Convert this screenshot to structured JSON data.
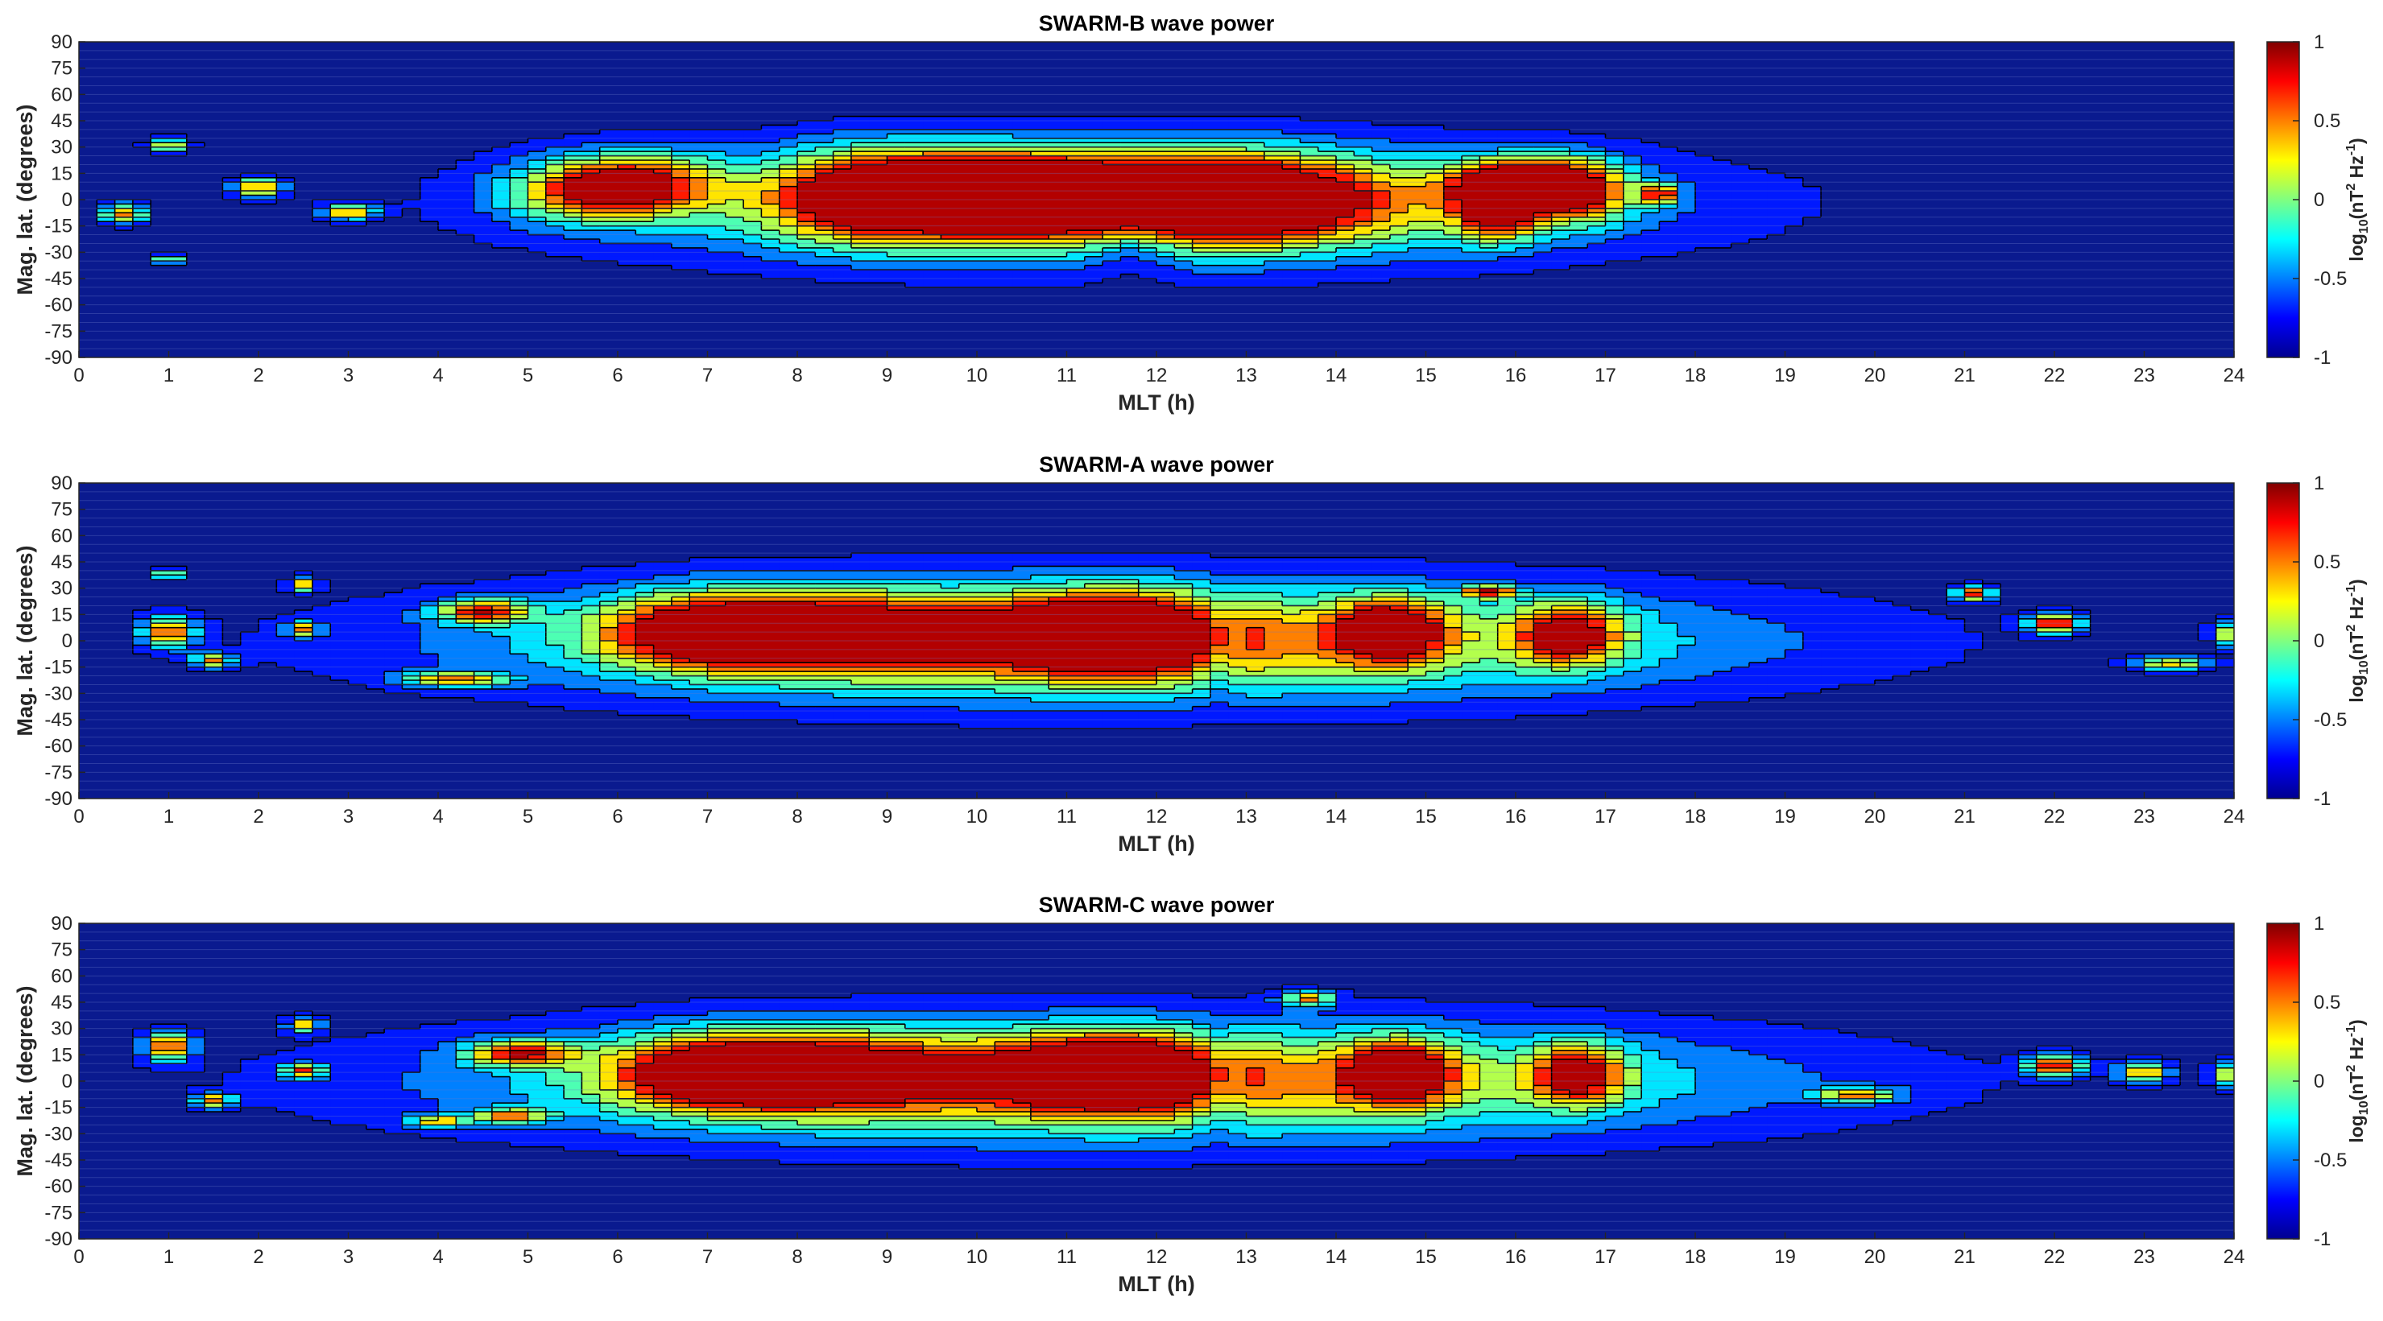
{
  "chart_data": [
    {
      "type": "heatmap",
      "title": "SWARM-B wave power",
      "xlabel": "MLT (h)",
      "ylabel": "Mag. lat. (degrees)",
      "colorbar_label": "log10(nT2 Hz-1)",
      "colorbar_label_parts": {
        "base": "log",
        "sub": "10",
        "open": "(nT",
        "sup1": "2",
        "mid": " Hz",
        "sup2": "-1",
        "close": ")"
      },
      "colorbar_range": [
        -1,
        1
      ],
      "colorbar_ticks": [
        "-1",
        "-0.5",
        "0",
        "0.5",
        "1"
      ],
      "colormap": "jet",
      "background_color": "#0a1a8f",
      "xlim": [
        0,
        24
      ],
      "ylim": [
        -90,
        90
      ],
      "x_ticks": [
        "0",
        "1",
        "2",
        "3",
        "4",
        "5",
        "6",
        "7",
        "8",
        "9",
        "10",
        "11",
        "12",
        "13",
        "14",
        "15",
        "16",
        "17",
        "18",
        "19",
        "20",
        "21",
        "22",
        "23",
        "24"
      ],
      "y_ticks": [
        "-90",
        "-75",
        "-60",
        "-45",
        "-30",
        "-15",
        "0",
        "15",
        "30",
        "45",
        "60",
        "75",
        "90"
      ],
      "blobs": [
        {
          "x": 11.6,
          "y": -2,
          "sx": 3.6,
          "sy": 22,
          "a": 0.65
        },
        {
          "x": 8.9,
          "y": 3,
          "sx": 0.75,
          "sy": 17,
          "a": 0.62
        },
        {
          "x": 10.4,
          "y": 4,
          "sx": 0.85,
          "sy": 15,
          "a": 0.82
        },
        {
          "x": 10.9,
          "y": 6,
          "sx": 0.35,
          "sy": 7,
          "a": 0.35
        },
        {
          "x": 12.8,
          "y": 1,
          "sx": 1.0,
          "sy": 16,
          "a": 0.9
        },
        {
          "x": 12.8,
          "y": -1,
          "sx": 0.35,
          "sy": 5,
          "a": 0.3
        },
        {
          "x": 9.3,
          "y": 1,
          "sx": 0.3,
          "sy": 10,
          "a": -0.3
        },
        {
          "x": 11.75,
          "y": -25,
          "sx": 0.35,
          "sy": 12,
          "a": -0.35
        },
        {
          "x": 6.3,
          "y": 10,
          "sx": 0.6,
          "sy": 12,
          "a": 0.2
        },
        {
          "x": 5.6,
          "y": 5,
          "sx": 0.6,
          "sy": 12,
          "a": 0.2
        },
        {
          "x": 16.0,
          "y": 8,
          "sx": 0.5,
          "sy": 10,
          "a": 1.1
        },
        {
          "x": 16.7,
          "y": 6,
          "sx": 0.4,
          "sy": 12,
          "a": 0.35
        },
        {
          "x": 15.8,
          "y": -10,
          "sx": 0.3,
          "sy": 10,
          "a": 0.25
        },
        {
          "x": 17.6,
          "y": 3,
          "sx": 0.15,
          "sy": 4,
          "a": 0.5
        },
        {
          "x": 2.0,
          "y": 7,
          "sx": 0.18,
          "sy": 4,
          "a": 0.55
        },
        {
          "x": 0.5,
          "y": -8,
          "sx": 0.18,
          "sy": 4,
          "a": 0.5
        },
        {
          "x": 1.0,
          "y": 31,
          "sx": 0.15,
          "sy": 3,
          "a": 0.35
        },
        {
          "x": 3.0,
          "y": -7,
          "sx": 0.2,
          "sy": 3,
          "a": 0.5
        },
        {
          "x": 1.0,
          "y": -34,
          "sx": 0.12,
          "sy": 2,
          "a": 0.2
        }
      ]
    },
    {
      "type": "heatmap",
      "title": "SWARM-A wave power",
      "xlabel": "MLT (h)",
      "ylabel": "Mag. lat. (degrees)",
      "colorbar_label": "log10(nT2 Hz-1)",
      "colorbar_label_parts": {
        "base": "log",
        "sub": "10",
        "open": "(nT",
        "sup1": "2",
        "mid": " Hz",
        "sup2": "-1",
        "close": ")"
      },
      "colorbar_range": [
        -1,
        1
      ],
      "colorbar_ticks": [
        "-1",
        "-0.5",
        "0",
        "0.5",
        "1"
      ],
      "colormap": "jet",
      "background_color": "#0a1a8f",
      "xlim": [
        0,
        24
      ],
      "ylim": [
        -90,
        90
      ],
      "x_ticks": [
        "0",
        "1",
        "2",
        "3",
        "4",
        "5",
        "6",
        "7",
        "8",
        "9",
        "10",
        "11",
        "12",
        "13",
        "14",
        "15",
        "16",
        "17",
        "18",
        "19",
        "20",
        "21",
        "22",
        "23",
        "24"
      ],
      "y_ticks": [
        "-90",
        "-75",
        "-60",
        "-45",
        "-30",
        "-15",
        "0",
        "15",
        "30",
        "45",
        "60",
        "75",
        "90"
      ],
      "blobs": [
        {
          "x": 11.5,
          "y": 0,
          "sx": 4.5,
          "sy": 23,
          "a": 0.55
        },
        {
          "x": 8.3,
          "y": 5,
          "sx": 1.3,
          "sy": 15,
          "a": 0.45
        },
        {
          "x": 11.5,
          "y": 4,
          "sx": 0.8,
          "sy": 15,
          "a": 0.95
        },
        {
          "x": 14.6,
          "y": 6,
          "sx": 0.4,
          "sy": 12,
          "a": 0.7
        },
        {
          "x": 16.6,
          "y": 4,
          "sx": 0.4,
          "sy": 12,
          "a": 0.55
        },
        {
          "x": 7.0,
          "y": 6,
          "sx": 0.8,
          "sy": 14,
          "a": 0.2
        },
        {
          "x": 12.7,
          "y": 0,
          "sx": 0.2,
          "sy": 20,
          "a": -0.35
        },
        {
          "x": 4.5,
          "y": 17,
          "sx": 0.35,
          "sy": 5,
          "a": 0.5
        },
        {
          "x": 4.2,
          "y": -22,
          "sx": 0.4,
          "sy": 3,
          "a": 0.35
        },
        {
          "x": 1.0,
          "y": 5,
          "sx": 0.2,
          "sy": 6,
          "a": 0.65
        },
        {
          "x": 22.0,
          "y": 10,
          "sx": 0.2,
          "sy": 4,
          "a": 0.85
        },
        {
          "x": 21.1,
          "y": 27,
          "sx": 0.15,
          "sy": 3,
          "a": 0.6
        },
        {
          "x": 15.7,
          "y": 28,
          "sx": 0.2,
          "sy": 2.5,
          "a": 0.6
        },
        {
          "x": 1.5,
          "y": -11,
          "sx": 0.15,
          "sy": 3,
          "a": 0.4
        },
        {
          "x": 2.5,
          "y": 7,
          "sx": 0.12,
          "sy": 3,
          "a": 0.4
        },
        {
          "x": 23.3,
          "y": -13,
          "sx": 0.3,
          "sy": 3,
          "a": 0.3
        },
        {
          "x": 24.0,
          "y": 4,
          "sx": 0.15,
          "sy": 5,
          "a": 0.4
        },
        {
          "x": 1.0,
          "y": 38,
          "sx": 0.12,
          "sy": 2,
          "a": 0.2
        },
        {
          "x": 2.5,
          "y": 32,
          "sx": 0.1,
          "sy": 3,
          "a": 0.35
        }
      ]
    },
    {
      "type": "heatmap",
      "title": "SWARM-C wave power",
      "xlabel": "MLT (h)",
      "ylabel": "Mag. lat. (degrees)",
      "colorbar_label": "log10(nT2 Hz-1)",
      "colorbar_label_parts": {
        "base": "log",
        "sub": "10",
        "open": "(nT",
        "sup1": "2",
        "mid": " Hz",
        "sup2": "-1",
        "close": ")"
      },
      "colorbar_range": [
        -1,
        1
      ],
      "colorbar_ticks": [
        "-1",
        "-0.5",
        "0",
        "0.5",
        "1"
      ],
      "colormap": "jet",
      "background_color": "#0a1a8f",
      "xlim": [
        0,
        24
      ],
      "ylim": [
        -90,
        90
      ],
      "x_ticks": [
        "0",
        "1",
        "2",
        "3",
        "4",
        "5",
        "6",
        "7",
        "8",
        "9",
        "10",
        "11",
        "12",
        "13",
        "14",
        "15",
        "16",
        "17",
        "18",
        "19",
        "20",
        "21",
        "22",
        "23",
        "24"
      ],
      "y_ticks": [
        "-90",
        "-75",
        "-60",
        "-45",
        "-30",
        "-15",
        "0",
        "15",
        "30",
        "45",
        "60",
        "75",
        "90"
      ],
      "blobs": [
        {
          "x": 11.5,
          "y": 0,
          "sx": 4.6,
          "sy": 23,
          "a": 0.55
        },
        {
          "x": 8.2,
          "y": 5,
          "sx": 1.1,
          "sy": 15,
          "a": 0.5
        },
        {
          "x": 11.5,
          "y": 5,
          "sx": 0.8,
          "sy": 14,
          "a": 0.95
        },
        {
          "x": 14.7,
          "y": 5,
          "sx": 0.4,
          "sy": 12,
          "a": 0.7
        },
        {
          "x": 16.7,
          "y": 4,
          "sx": 0.35,
          "sy": 12,
          "a": 0.5
        },
        {
          "x": 7.0,
          "y": 5,
          "sx": 0.8,
          "sy": 14,
          "a": 0.2
        },
        {
          "x": 12.7,
          "y": 0,
          "sx": 0.2,
          "sy": 20,
          "a": -0.35
        },
        {
          "x": 4.9,
          "y": 16,
          "sx": 0.4,
          "sy": 5,
          "a": 0.5
        },
        {
          "x": 4.8,
          "y": -20,
          "sx": 0.3,
          "sy": 3,
          "a": 0.3
        },
        {
          "x": 1.0,
          "y": 20,
          "sx": 0.18,
          "sy": 6,
          "a": 0.65
        },
        {
          "x": 22.0,
          "y": 9,
          "sx": 0.22,
          "sy": 4,
          "a": 0.85
        },
        {
          "x": 1.5,
          "y": -11,
          "sx": 0.15,
          "sy": 3,
          "a": 0.4
        },
        {
          "x": 2.5,
          "y": 6,
          "sx": 0.15,
          "sy": 3,
          "a": 0.45
        },
        {
          "x": 2.5,
          "y": 32,
          "sx": 0.12,
          "sy": 3,
          "a": 0.35
        },
        {
          "x": 4.0,
          "y": -23,
          "sx": 0.2,
          "sy": 2.5,
          "a": 0.3
        },
        {
          "x": 23.0,
          "y": 5,
          "sx": 0.2,
          "sy": 4,
          "a": 0.35
        },
        {
          "x": 19.8,
          "y": -8,
          "sx": 0.3,
          "sy": 3,
          "a": 0.3
        },
        {
          "x": 24.0,
          "y": 4,
          "sx": 0.15,
          "sy": 5,
          "a": 0.4
        },
        {
          "x": 13.7,
          "y": 47,
          "sx": 0.2,
          "sy": 3,
          "a": 0.35
        }
      ]
    }
  ]
}
